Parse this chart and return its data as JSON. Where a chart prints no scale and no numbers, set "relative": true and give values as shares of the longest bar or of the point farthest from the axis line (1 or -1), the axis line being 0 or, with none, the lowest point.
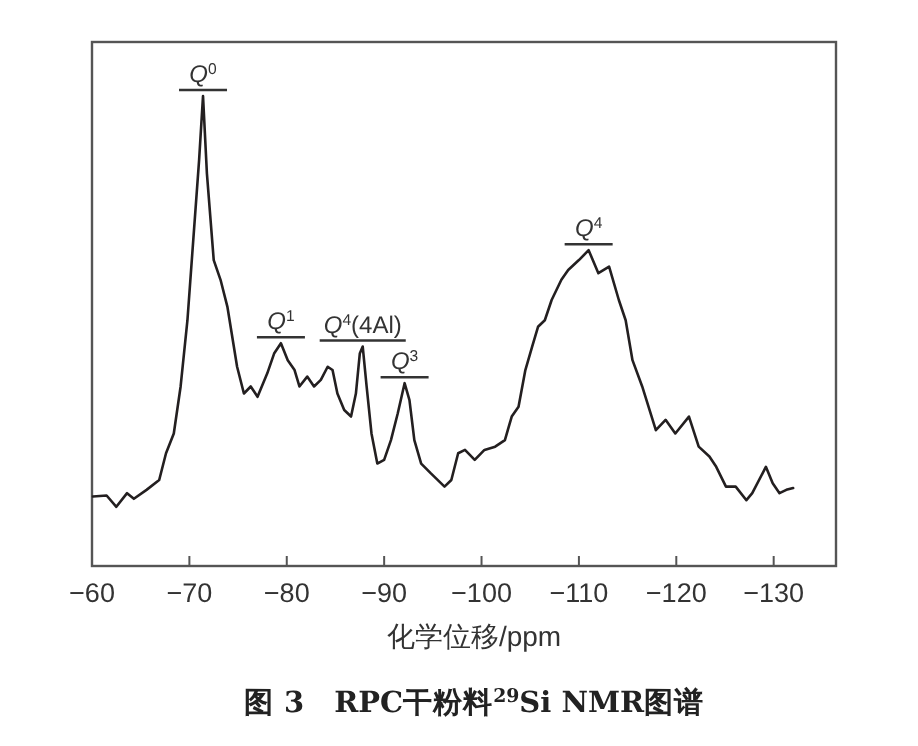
{
  "chart_data": {
    "type": "line",
    "relative": true,
    "title": "图 3　RPC干粉料$^{29}$Si NMR图谱",
    "xlabel": "化学位移/ppm",
    "xlim": [
      -60,
      -136.4
    ],
    "xticks": [
      -60,
      -70,
      -80,
      -90,
      -100,
      -110,
      -120,
      -130
    ],
    "annotations": [
      {
        "text": "*Q*$^{0}$",
        "x": -71.4,
        "y": 1.0
      },
      {
        "text": "*Q*$^{1}$",
        "x": -79.4,
        "y": 0.474
      },
      {
        "text": "*Q*$^{4}$(4Al)",
        "x": -87.8,
        "y": 0.467
      },
      {
        "text": "*Q*$^{3}$",
        "x": -92.1,
        "y": 0.389
      },
      {
        "text": "*Q*$^{4}$",
        "x": -111.0,
        "y": 0.672
      }
    ],
    "x": [
      -60.1,
      -61.5,
      -62.5,
      -63.6,
      -64.3,
      -65.6,
      -66.9,
      -67.6,
      -68.4,
      -69.1,
      -69.8,
      -70.4,
      -71.0,
      -71.4,
      -71.8,
      -72.5,
      -73.2,
      -73.9,
      -74.9,
      -75.6,
      -76.3,
      -77.0,
      -78.0,
      -78.7,
      -79.4,
      -80.1,
      -80.8,
      -81.3,
      -82.1,
      -82.8,
      -83.5,
      -84.2,
      -84.7,
      -85.2,
      -85.9,
      -86.6,
      -87.1,
      -87.5,
      -87.8,
      -88.2,
      -88.7,
      -89.3,
      -90.0,
      -90.7,
      -91.4,
      -92.1,
      -92.6,
      -93.1,
      -93.8,
      -94.8,
      -96.2,
      -96.9,
      -97.6,
      -98.3,
      -99.3,
      -100.3,
      -101.4,
      -102.4,
      -103.1,
      -103.8,
      -104.5,
      -105.2,
      -105.8,
      -106.5,
      -107.2,
      -108.2,
      -108.9,
      -110.0,
      -111.0,
      -112.0,
      -113.1,
      -114.1,
      -114.8,
      -115.5,
      -116.5,
      -117.9,
      -118.9,
      -119.9,
      -121.3,
      -122.3,
      -123.4,
      -124.1,
      -125.1,
      -126.1,
      -127.2,
      -127.8,
      -129.2,
      -129.9,
      -130.6,
      -131.3,
      -132.0
    ],
    "series": [
      {
        "color": "#231f20",
        "values": [
          0.148,
          0.15,
          0.126,
          0.155,
          0.143,
          0.162,
          0.183,
          0.24,
          0.282,
          0.382,
          0.523,
          0.694,
          0.864,
          1.0,
          0.835,
          0.651,
          0.609,
          0.552,
          0.424,
          0.367,
          0.382,
          0.36,
          0.41,
          0.452,
          0.474,
          0.438,
          0.417,
          0.382,
          0.403,
          0.382,
          0.396,
          0.424,
          0.417,
          0.367,
          0.332,
          0.318,
          0.367,
          0.452,
          0.467,
          0.382,
          0.282,
          0.218,
          0.226,
          0.268,
          0.325,
          0.389,
          0.353,
          0.268,
          0.218,
          0.197,
          0.169,
          0.183,
          0.24,
          0.247,
          0.226,
          0.247,
          0.254,
          0.268,
          0.318,
          0.339,
          0.417,
          0.467,
          0.509,
          0.523,
          0.566,
          0.609,
          0.63,
          0.651,
          0.672,
          0.623,
          0.637,
          0.566,
          0.523,
          0.438,
          0.382,
          0.289,
          0.311,
          0.282,
          0.318,
          0.254,
          0.233,
          0.211,
          0.169,
          0.169,
          0.14,
          0.155,
          0.211,
          0.176,
          0.155,
          0.162,
          0.166
        ]
      }
    ]
  }
}
